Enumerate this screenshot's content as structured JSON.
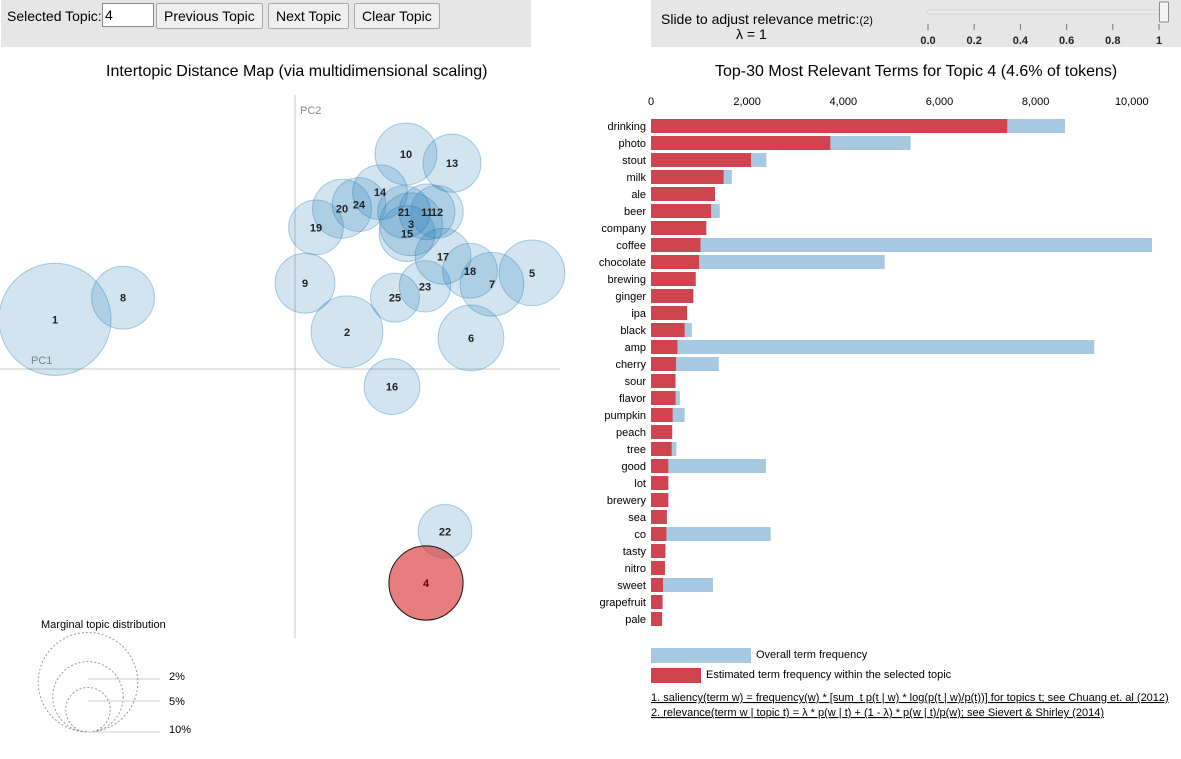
{
  "controls": {
    "selected_topic_label": "Selected Topic:",
    "selected_topic_value": "4",
    "prev_label": "Previous Topic",
    "next_label": "Next Topic",
    "clear_label": "Clear Topic",
    "slider_label": "Slide to adjust relevance metric:",
    "slider_note": "(2)",
    "lambda_text": "λ = 1",
    "slider_ticks": [
      "0.0",
      "0.2",
      "0.4",
      "0.6",
      "0.8",
      "1"
    ],
    "lambda_value": 1
  },
  "left_title": "Intertopic Distance Map (via multidimensional scaling)",
  "right_title": "Top-30 Most Relevant Terms for Topic 4 (4.6% of tokens)",
  "colors": {
    "topic_fill": "#1f77b4",
    "selected_fill": "#d62728",
    "overall_bar": "#a6c8e0",
    "estimated_bar": "#d0444f"
  },
  "chart_data": [
    {
      "type": "scatter",
      "title": "Intertopic Distance Map (via multidimensional scaling)",
      "xlabel": "PC1",
      "ylabel": "PC2",
      "xlim": [
        -0.295,
        0.265
      ],
      "ylim": [
        -0.265,
        0.265
      ],
      "selected_topic": 4,
      "points": [
        {
          "label": "1",
          "x": -0.24,
          "y": 0.048,
          "size": 10.5
        },
        {
          "label": "8",
          "x": -0.172,
          "y": 0.069,
          "size": 3.3
        },
        {
          "label": "2",
          "x": 0.052,
          "y": 0.036,
          "size": 4.3
        },
        {
          "label": "9",
          "x": 0.01,
          "y": 0.083,
          "size": 3.0
        },
        {
          "label": "10",
          "x": 0.111,
          "y": 0.208,
          "size": 3.2
        },
        {
          "label": "13",
          "x": 0.157,
          "y": 0.199,
          "size": 2.8
        },
        {
          "label": "14",
          "x": 0.085,
          "y": 0.171,
          "size": 2.5
        },
        {
          "label": "20",
          "x": 0.047,
          "y": 0.155,
          "size": 2.9
        },
        {
          "label": "24",
          "x": 0.064,
          "y": 0.159,
          "size": 2.4
        },
        {
          "label": "19",
          "x": 0.021,
          "y": 0.137,
          "size": 2.5
        },
        {
          "label": "21",
          "x": 0.109,
          "y": 0.152,
          "size": 2.3
        },
        {
          "label": "11",
          "x": 0.132,
          "y": 0.152,
          "size": 2.6
        },
        {
          "label": "12",
          "x": 0.142,
          "y": 0.152,
          "size": 2.3
        },
        {
          "label": "3",
          "x": 0.116,
          "y": 0.14,
          "size": 3.3
        },
        {
          "label": "15",
          "x": 0.112,
          "y": 0.131,
          "size": 2.6
        },
        {
          "label": "17",
          "x": 0.148,
          "y": 0.109,
          "size": 2.6
        },
        {
          "label": "18",
          "x": 0.175,
          "y": 0.095,
          "size": 2.5
        },
        {
          "label": "7",
          "x": 0.197,
          "y": 0.082,
          "size": 3.4
        },
        {
          "label": "5",
          "x": 0.237,
          "y": 0.093,
          "size": 3.6
        },
        {
          "label": "23",
          "x": 0.13,
          "y": 0.08,
          "size": 2.2
        },
        {
          "label": "25",
          "x": 0.1,
          "y": 0.069,
          "size": 2.0
        },
        {
          "label": "6",
          "x": 0.176,
          "y": 0.03,
          "size": 3.6
        },
        {
          "label": "16",
          "x": 0.097,
          "y": -0.017,
          "size": 2.6
        },
        {
          "label": "22",
          "x": 0.15,
          "y": -0.157,
          "size": 2.4
        },
        {
          "label": "4",
          "x": 0.131,
          "y": -0.207,
          "size": 4.6
        }
      ],
      "legend_title": "Marginal topic distribution",
      "legend_labels": [
        "2%",
        "5%",
        "10%"
      ]
    },
    {
      "type": "bar",
      "title": "Top-30 Most Relevant Terms for Topic 4 (4.6% of tokens)",
      "xlim": [
        0,
        10400
      ],
      "xticks": [
        "0",
        "2,000",
        "4,000",
        "6,000",
        "8,000",
        "10,000"
      ],
      "categories": [
        "drinking",
        "photo",
        "stout",
        "milk",
        "ale",
        "beer",
        "company",
        "coffee",
        "chocolate",
        "brewing",
        "ginger",
        "ipa",
        "black",
        "amp",
        "cherry",
        "sour",
        "flavor",
        "pumpkin",
        "peach",
        "tree",
        "good",
        "lot",
        "brewery",
        "sea",
        "co",
        "tasty",
        "nitro",
        "sweet",
        "grapefruit",
        "pale"
      ],
      "series": [
        {
          "name": "Overall term frequency",
          "values": [
            8610,
            5400,
            2400,
            1680,
            1330,
            1430,
            1150,
            10420,
            4860,
            930,
            880,
            750,
            850,
            9220,
            1410,
            510,
            600,
            700,
            440,
            530,
            2390,
            360,
            360,
            330,
            2490,
            300,
            290,
            1290,
            240,
            230
          ]
        },
        {
          "name": "Estimated term frequency within the selected topic",
          "values": [
            7410,
            3730,
            2080,
            1510,
            1330,
            1250,
            1150,
            1030,
            1000,
            930,
            880,
            750,
            700,
            550,
            520,
            510,
            510,
            450,
            440,
            430,
            360,
            360,
            360,
            330,
            320,
            300,
            290,
            250,
            240,
            230
          ]
        }
      ]
    }
  ],
  "legend": {
    "overall": "Overall term frequency",
    "estimated": "Estimated term frequency within the selected topic"
  },
  "footnotes": [
    "1. saliency(term w) = frequency(w) * [sum_t p(t | w) * log(p(t | w)/p(t))] for topics t; see Chuang et. al (2012)",
    "2. relevance(term w | topic t) = λ * p(w | t) + (1 - λ) * p(w | t)/p(w); see Sievert & Shirley (2014)"
  ]
}
